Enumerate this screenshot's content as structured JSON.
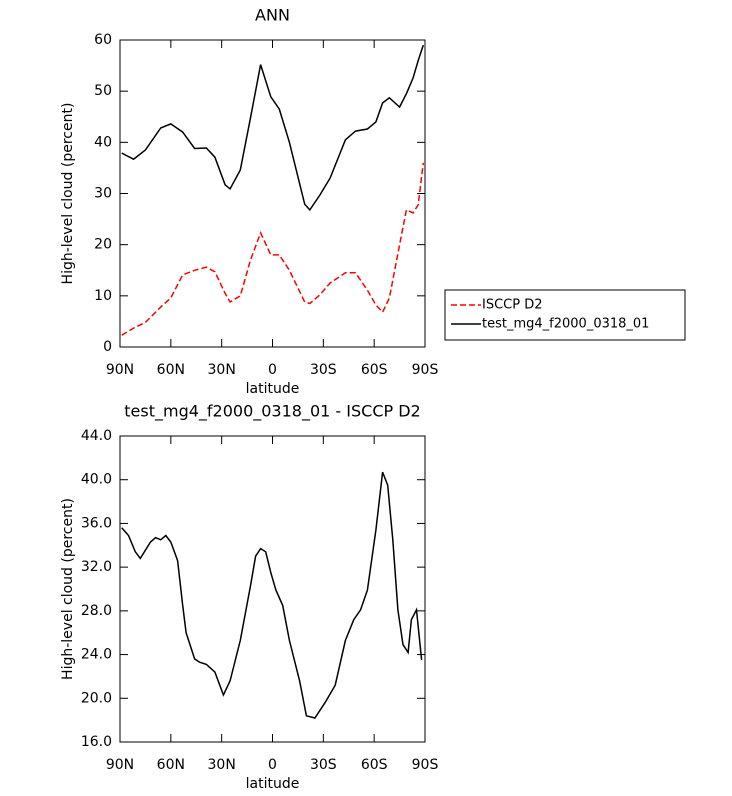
{
  "chart_data": [
    {
      "type": "line",
      "title": "ANN",
      "xlabel": "latitude",
      "ylabel": "High-level cloud (percent)",
      "x": [
        89,
        82,
        75,
        66,
        60,
        53,
        46,
        39,
        34,
        28,
        25,
        19,
        13,
        7,
        1,
        -4,
        -10,
        -19,
        -22,
        -28,
        -34,
        -43,
        -49,
        -56,
        -61,
        -65,
        -69,
        -75,
        -79,
        -83,
        -86,
        -89
      ],
      "series": [
        {
          "name": "ISCCP D2",
          "color": "#ff0000",
          "linestyle": "dashed",
          "values": [
            2.3,
            3.7,
            4.8,
            7.8,
            9.6,
            14.1,
            15,
            15.6,
            14.7,
            10.5,
            8.8,
            10,
            17,
            22.3,
            18,
            18,
            15,
            8.8,
            8.5,
            10.2,
            12.5,
            14.5,
            14.5,
            11.1,
            8.2,
            6.8,
            9.6,
            20,
            26.8,
            26.2,
            27.8,
            36
          ]
        },
        {
          "name": "test_mg4_f2000_0318_01",
          "color": "#000000",
          "linestyle": "solid",
          "values": [
            37.9,
            36.7,
            38.5,
            42.8,
            43.6,
            42,
            38.8,
            38.9,
            37.1,
            31.7,
            30.9,
            34.6,
            44.8,
            55.2,
            48.9,
            46.5,
            40,
            27.9,
            26.8,
            29.7,
            33,
            40.5,
            42.2,
            42.6,
            44,
            47.7,
            48.7,
            46.9,
            49.5,
            52.6,
            56,
            59
          ]
        }
      ],
      "xlim": [
        90,
        -90
      ],
      "xticks": [
        {
          "value": 90,
          "label": "90N"
        },
        {
          "value": 60,
          "label": "60N"
        },
        {
          "value": 30,
          "label": "30N"
        },
        0,
        {
          "value": -30,
          "label": "30S"
        },
        {
          "value": -60,
          "label": "60S"
        },
        {
          "value": -90,
          "label": "90S"
        }
      ],
      "ylim": [
        0,
        60
      ],
      "yticks": [
        0,
        10,
        20,
        30,
        40,
        50,
        60
      ]
    },
    {
      "type": "line",
      "title": "test_mg4_f2000_0318_01 - ISCCP D2",
      "xlabel": "latitude",
      "ylabel": "High-level cloud (percent)",
      "x": [
        89,
        85,
        81,
        78,
        72,
        69,
        66,
        63,
        60,
        56,
        53,
        51,
        46,
        43,
        39,
        34,
        29,
        25,
        19,
        13,
        10,
        7,
        4,
        1,
        -2,
        -6,
        -10,
        -16,
        -20,
        -25,
        -31,
        -37,
        -43,
        -48,
        -52,
        -56,
        -61,
        -65,
        -68,
        -71,
        -74,
        -77,
        -80,
        -82,
        -85,
        -88
      ],
      "series": [
        {
          "color": "#000000",
          "linestyle": "solid",
          "values": [
            35.6,
            34.9,
            33.4,
            32.8,
            34.3,
            34.7,
            34.5,
            34.9,
            34.3,
            32.6,
            28.5,
            26,
            23.6,
            23.3,
            23.1,
            22.4,
            20.3,
            21.6,
            25.3,
            30.3,
            33,
            33.7,
            33.4,
            31.5,
            29.9,
            28.5,
            25.3,
            21.6,
            18.4,
            18.2,
            19.6,
            21.2,
            25.3,
            27.2,
            28.1,
            29.9,
            35.4,
            40.7,
            39.5,
            34.5,
            28.1,
            24.9,
            24.2,
            27.2,
            28.1,
            23.5
          ]
        }
      ],
      "xlim": [
        90,
        -90
      ],
      "xticks": [
        {
          "value": 90,
          "label": "90N"
        },
        {
          "value": 60,
          "label": "60N"
        },
        {
          "value": 30,
          "label": "30N"
        },
        0,
        {
          "value": -30,
          "label": "30S"
        },
        {
          "value": -60,
          "label": "60S"
        },
        {
          "value": -90,
          "label": "90S"
        }
      ],
      "ylim": [
        16,
        44
      ],
      "yticks": [
        {
          "value": 16,
          "label": "16.0"
        },
        {
          "value": 20,
          "label": "20.0"
        },
        {
          "value": 24,
          "label": "24.0"
        },
        {
          "value": 28,
          "label": "28.0"
        },
        {
          "value": 32,
          "label": "32.0"
        },
        {
          "value": 36,
          "label": "36.0"
        },
        {
          "value": 40,
          "label": "40.0"
        },
        {
          "value": 44,
          "label": "44.0"
        }
      ]
    }
  ]
}
